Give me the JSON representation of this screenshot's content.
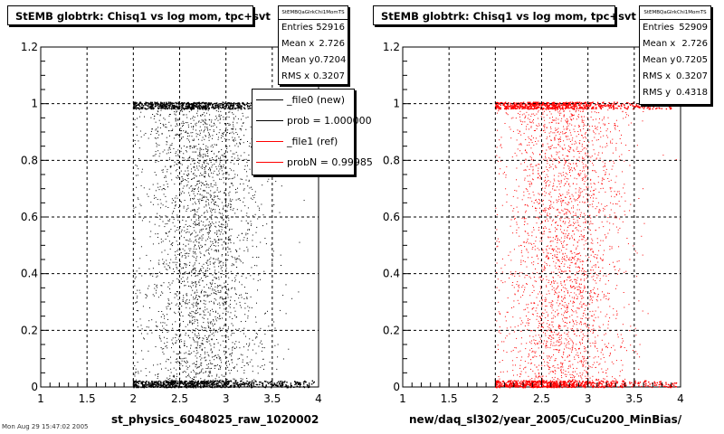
{
  "chart_data": [
    {
      "type": "scatter",
      "title": "StEMB globtrk: Chisq1 vs log mom, tpc+svt",
      "xlabel": "st_physics_6048025_raw_1020002",
      "xlim": [
        1,
        4
      ],
      "ylim": [
        0,
        1.2
      ],
      "xticks": [
        "1",
        "1.5",
        "2",
        "2.5",
        "3",
        "3.5",
        "4"
      ],
      "yticks": [
        "0",
        "0.2",
        "0.4",
        "0.6",
        "0.8",
        "1",
        "1.2"
      ],
      "grid": true,
      "marker_color": "#000000",
      "stats": {
        "name": "StEMBQaGlrkChi1MomTS",
        "rows": [
          {
            "label": "Entries",
            "value": "52916"
          },
          {
            "label": "Mean x",
            "value": "2.726"
          },
          {
            "label": "Mean y",
            "value": "0.7204"
          },
          {
            "label": "RMS x",
            "value": "0.3207"
          }
        ]
      },
      "legend": [
        {
          "label": "_file0 (new)",
          "color": "#000000"
        },
        {
          "label": "prob = 1.000000",
          "color": "#000000"
        },
        {
          "label": "_file1 (ref)",
          "color": "#ff0000"
        },
        {
          "label": "probN = 0.99985",
          "color": "#ff0000"
        }
      ]
    },
    {
      "type": "scatter",
      "title": "StEMB globtrk: Chisq1 vs log mom, tpc+svt",
      "xlabel": "new/daq_sl302/year_2005/CuCu200_MinBias/",
      "xlim": [
        1,
        4
      ],
      "ylim": [
        0,
        1.2
      ],
      "xticks": [
        "1",
        "1.5",
        "2",
        "2.5",
        "3",
        "3.5",
        "4"
      ],
      "yticks": [
        "0",
        "0.2",
        "0.4",
        "0.6",
        "0.8",
        "1",
        "1.2"
      ],
      "grid": true,
      "marker_color": "#ff0000",
      "stats": {
        "name": "StEMBQaGlrkChi1MomTS",
        "rows": [
          {
            "label": "Entries",
            "value": "52909"
          },
          {
            "label": "Mean x",
            "value": "2.726"
          },
          {
            "label": "Mean y",
            "value": "0.7205"
          },
          {
            "label": "RMS x",
            "value": "0.3207"
          },
          {
            "label": "RMS y",
            "value": "0.4318"
          }
        ]
      }
    }
  ],
  "footer": "Mon Aug 29 15:47:02 2005"
}
